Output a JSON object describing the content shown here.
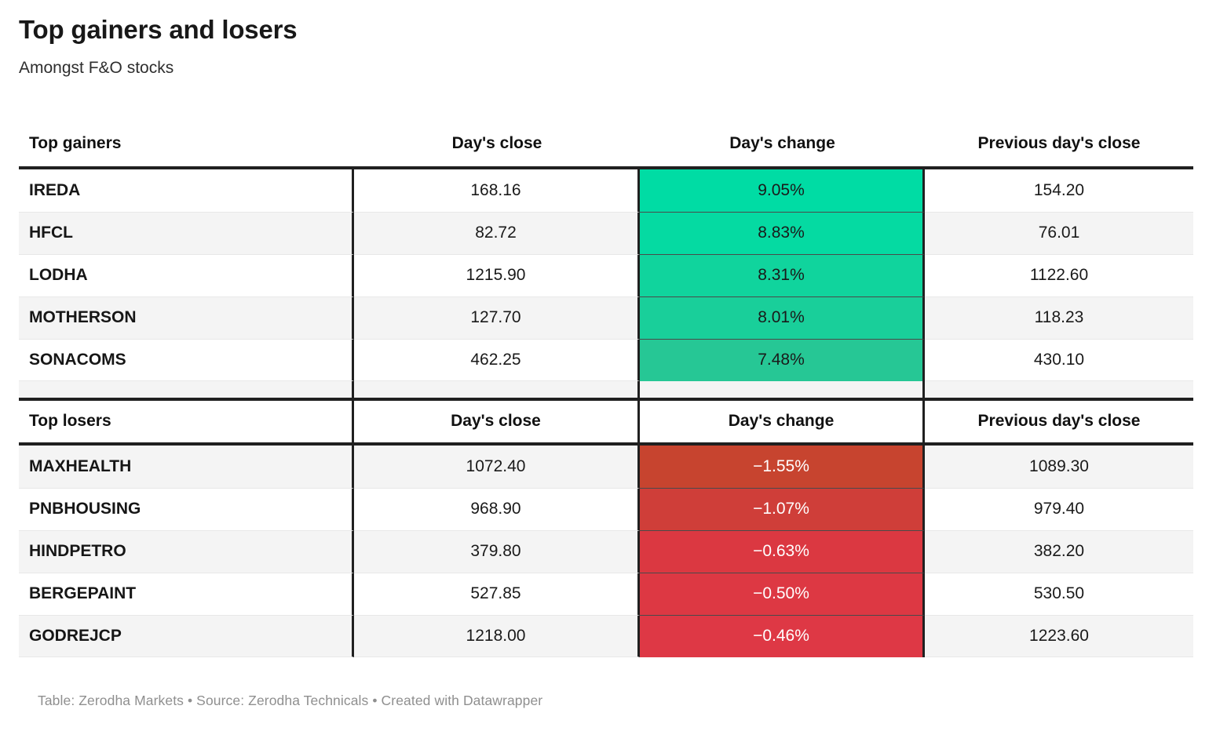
{
  "header": {
    "title": "Top gainers and losers",
    "subtitle": "Amongst F&O stocks"
  },
  "gainers": {
    "columns": [
      "Top gainers",
      "Day's close",
      "Day's change",
      "Previous day's close"
    ],
    "rows": [
      {
        "name": "IREDA",
        "close": "168.16",
        "change": "9.05%",
        "prev": "154.20",
        "cell_bg": "#00dca4",
        "cell_fg": "#1a1a1a"
      },
      {
        "name": "HFCL",
        "close": "82.72",
        "change": "8.83%",
        "prev": "76.01",
        "cell_bg": "#05daa2",
        "cell_fg": "#1a1a1a"
      },
      {
        "name": "LODHA",
        "close": "1215.90",
        "change": "8.31%",
        "prev": "1122.60",
        "cell_bg": "#10d49d",
        "cell_fg": "#1a1a1a"
      },
      {
        "name": "MOTHERSON",
        "close": "127.70",
        "change": "8.01%",
        "prev": "118.23",
        "cell_bg": "#19cf9a",
        "cell_fg": "#1a1a1a"
      },
      {
        "name": "SONACOMS",
        "close": "462.25",
        "change": "7.48%",
        "prev": "430.10",
        "cell_bg": "#26c795",
        "cell_fg": "#1a1a1a"
      }
    ]
  },
  "losers": {
    "columns": [
      "Top losers",
      "Day's close",
      "Day's change",
      "Previous day's close"
    ],
    "rows": [
      {
        "name": "MAXHEALTH",
        "close": "1072.40",
        "change": "−1.55%",
        "prev": "1089.30",
        "cell_bg": "#c7442f",
        "cell_fg": "#ffffff"
      },
      {
        "name": "PNBHOUSING",
        "close": "968.90",
        "change": "−1.07%",
        "prev": "979.40",
        "cell_bg": "#cf3e39",
        "cell_fg": "#ffffff"
      },
      {
        "name": "HINDPETRO",
        "close": "379.80",
        "change": "−0.63%",
        "prev": "382.20",
        "cell_bg": "#db3841",
        "cell_fg": "#ffffff"
      },
      {
        "name": "BERGEPAINT",
        "close": "527.85",
        "change": "−0.50%",
        "prev": "530.50",
        "cell_bg": "#dd3843",
        "cell_fg": "#ffffff"
      },
      {
        "name": "GODREJCP",
        "close": "1218.00",
        "change": "−0.46%",
        "prev": "1223.60",
        "cell_bg": "#de3845",
        "cell_fg": "#ffffff"
      }
    ]
  },
  "footer": {
    "text": "Table: Zerodha Markets • Source: Zerodha Technicals • Created with Datawrapper"
  },
  "colors": {
    "gain_max": "#00dca4",
    "gain_min": "#26c795",
    "loss_max": "#c7442f",
    "loss_min": "#de3845",
    "row_alt": "#f4f4f4",
    "border_dark": "#202020",
    "footer_text": "#8f8f8f"
  },
  "chart_data": [
    {
      "type": "table",
      "title": "Top gainers",
      "columns": [
        "Top gainers",
        "Day's close",
        "Day's change",
        "Previous day's close"
      ],
      "rows": [
        [
          "IREDA",
          168.16,
          "9.05%",
          154.2
        ],
        [
          "HFCL",
          82.72,
          "8.83%",
          76.01
        ],
        [
          "LODHA",
          1215.9,
          "8.31%",
          1122.6
        ],
        [
          "MOTHERSON",
          127.7,
          "8.01%",
          118.23
        ],
        [
          "SONACOMS",
          462.25,
          "7.48%",
          430.1
        ]
      ],
      "heatmap_column": "Day's change",
      "heatmap_direction": "green shades, brighter = larger gain"
    },
    {
      "type": "table",
      "title": "Top losers",
      "columns": [
        "Top losers",
        "Day's close",
        "Day's change",
        "Previous day's close"
      ],
      "rows": [
        [
          "MAXHEALTH",
          1072.4,
          "-1.55%",
          1089.3
        ],
        [
          "PNBHOUSING",
          968.9,
          "-1.07%",
          979.4
        ],
        [
          "HINDPETRO",
          379.8,
          "-0.63%",
          382.2
        ],
        [
          "BERGEPAINT",
          527.85,
          "-0.50%",
          530.5
        ],
        [
          "GODREJCP",
          1218.0,
          "-0.46%",
          1223.6
        ]
      ],
      "heatmap_column": "Day's change",
      "heatmap_direction": "red shades, darker = larger loss"
    }
  ]
}
